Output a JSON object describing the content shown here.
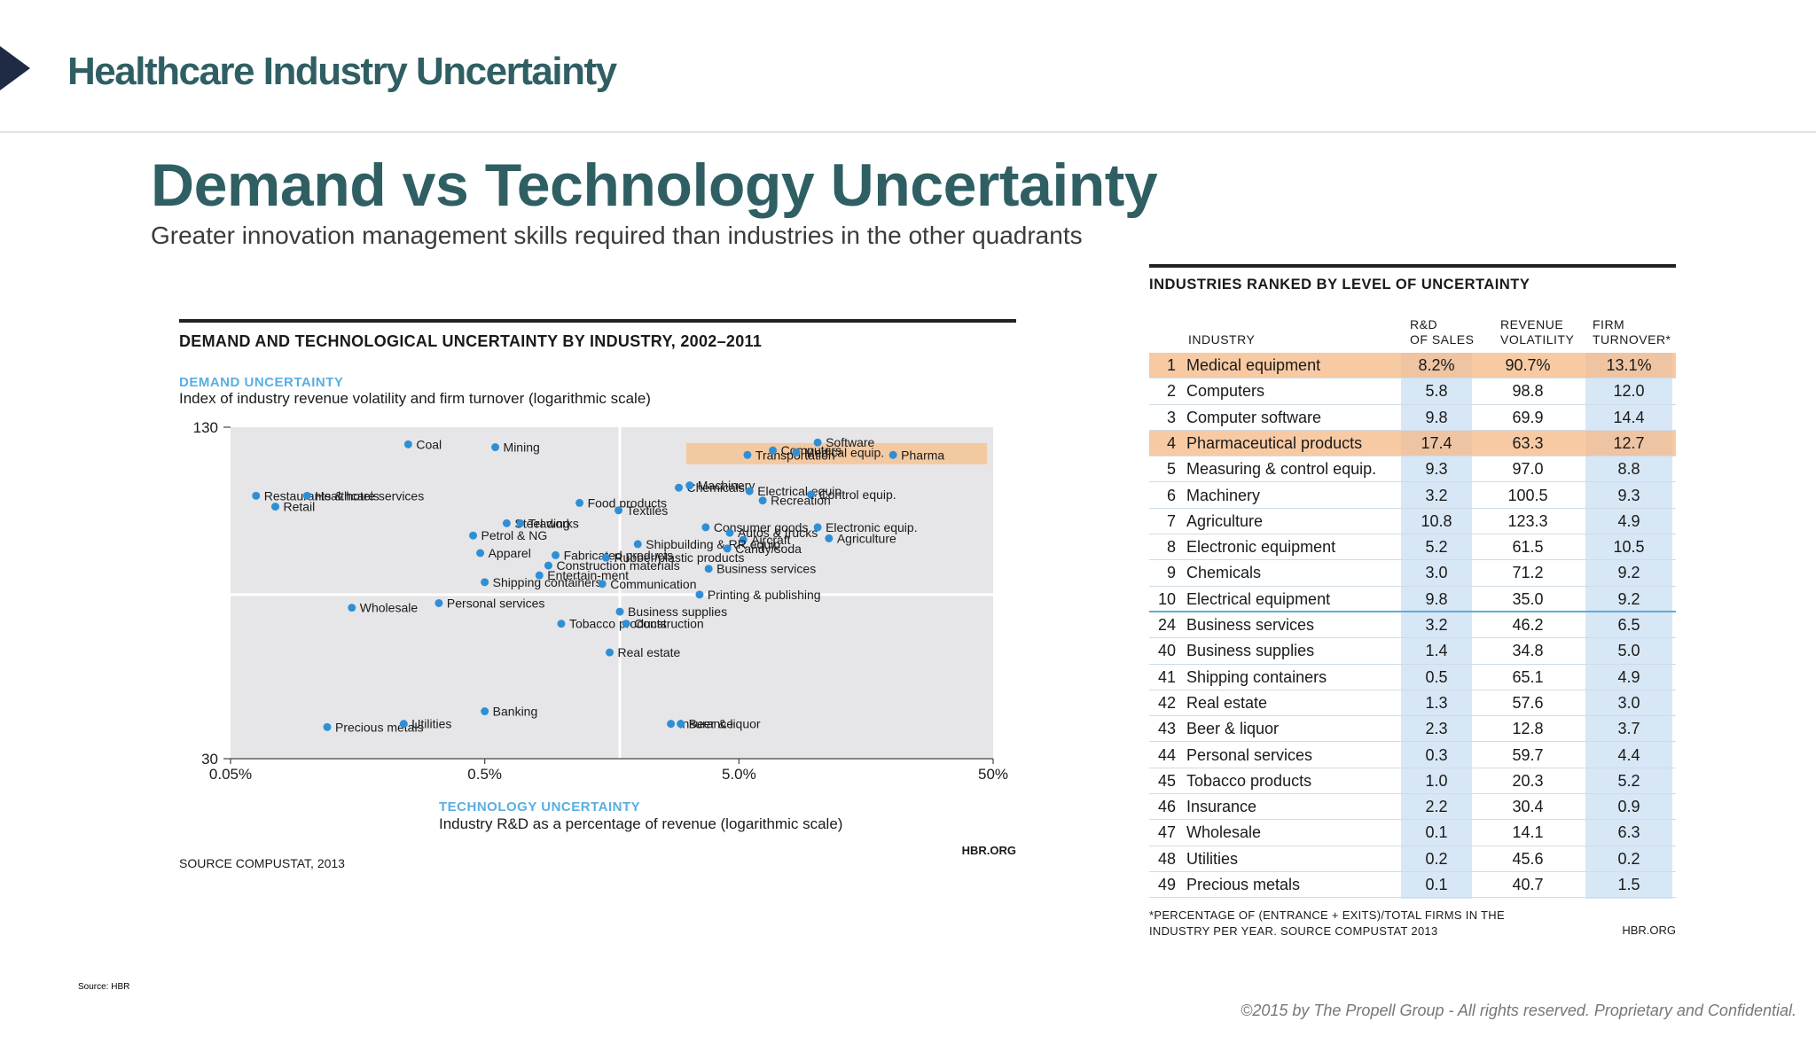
{
  "header": {
    "title": "Healthcare Industry Uncertainty"
  },
  "slide": {
    "title": "Demand vs Technology Uncertainty",
    "subtitle": "Greater innovation management skills required than industries in the other quadrants"
  },
  "scatter_panel": {
    "title": "DEMAND AND TECHNOLOGICAL UNCERTAINTY BY INDUSTRY, 2002–2011",
    "y_title": "DEMAND UNCERTAINTY",
    "y_desc": "Index of industry revenue volatility and firm turnover (logarithmic scale)",
    "x_title": "TECHNOLOGY UNCERTAINTY",
    "x_desc": "Industry R&D as a percentage of revenue (logarithmic scale)",
    "source": "SOURCE COMPUSTAT, 2013",
    "credit": "HBR.ORG"
  },
  "colors": {
    "dot": "#2f8fd6",
    "plot_bg": "#e6e6e8",
    "highlight": "#f3c9a1",
    "accent": "#2f5f63"
  },
  "chart_data": [
    {
      "type": "scatter",
      "title": "DEMAND AND TECHNOLOGICAL UNCERTAINTY BY INDUSTRY, 2002–2011",
      "xlabel": "Industry R&D as a percentage of revenue (logarithmic scale)",
      "ylabel": "Index of industry revenue volatility and firm turnover (logarithmic scale)",
      "x_scale": "log",
      "y_scale": "log",
      "xlim": [
        0.05,
        50
      ],
      "ylim": [
        30,
        130
      ],
      "x_ticks": [
        0.05,
        0.5,
        5,
        50
      ],
      "x_tick_labels": [
        "0.05%",
        "0.5%",
        "5.0%",
        "50%"
      ],
      "y_ticks": [
        30,
        130
      ],
      "y_tick_labels": [
        "30",
        "130"
      ],
      "quadrant_divider": {
        "x": 1.7,
        "y": 62
      },
      "highlight_labels": [
        "Medical equip.",
        "Pharma"
      ],
      "points": [
        {
          "label": "Coal",
          "x": 0.25,
          "y": 120.5
        },
        {
          "label": "Mining",
          "x": 0.55,
          "y": 119
        },
        {
          "label": "Restaurants & hotels",
          "x": 0.063,
          "y": 96
        },
        {
          "label": "Healthcare services",
          "x": 0.1,
          "y": 96
        },
        {
          "label": "Retail",
          "x": 0.075,
          "y": 91.5
        },
        {
          "label": "Steel works",
          "x": 0.61,
          "y": 85
        },
        {
          "label": "Trading",
          "x": 0.69,
          "y": 85
        },
        {
          "label": "Food products",
          "x": 1.18,
          "y": 93
        },
        {
          "label": "Textiles",
          "x": 1.68,
          "y": 90
        },
        {
          "label": "Chemicals",
          "x": 2.9,
          "y": 99.5
        },
        {
          "label": "Transportation",
          "x": 5.4,
          "y": 115
        },
        {
          "label": "Computers",
          "x": 6.8,
          "y": 117.3
        },
        {
          "label": "Software",
          "x": 10.2,
          "y": 121.5
        },
        {
          "label": "Medical equip.",
          "x": 8.4,
          "y": 116.3
        },
        {
          "label": "Pharma",
          "x": 20.2,
          "y": 115
        },
        {
          "label": "Machinery",
          "x": 3.2,
          "y": 100.5
        },
        {
          "label": "Electrical equip.",
          "x": 5.5,
          "y": 98
        },
        {
          "label": "Control equip.",
          "x": 9.6,
          "y": 96.5
        },
        {
          "label": "Recreation",
          "x": 6.2,
          "y": 94
        },
        {
          "label": "Consumer goods",
          "x": 3.7,
          "y": 83.5
        },
        {
          "label": "Autos & trucks",
          "x": 4.6,
          "y": 81.5
        },
        {
          "label": "Electronic equip.",
          "x": 10.2,
          "y": 83.5
        },
        {
          "label": "Aircraft",
          "x": 5.2,
          "y": 79
        },
        {
          "label": "Agriculture",
          "x": 11.3,
          "y": 79.5
        },
        {
          "label": "Shipbuilding & RR equip.",
          "x": 2.0,
          "y": 77.5
        },
        {
          "label": "Candy/soda",
          "x": 4.5,
          "y": 76
        },
        {
          "label": "Petrol & NG",
          "x": 0.45,
          "y": 80.5
        },
        {
          "label": "Apparel",
          "x": 0.48,
          "y": 74.5
        },
        {
          "label": "Fabricated products",
          "x": 0.95,
          "y": 73.8
        },
        {
          "label": "Construction materials",
          "x": 0.89,
          "y": 70.5
        },
        {
          "label": "Rubber/plastic products",
          "x": 1.5,
          "y": 73
        },
        {
          "label": "Business services",
          "x": 3.8,
          "y": 69.5
        },
        {
          "label": "Shipping containers",
          "x": 0.5,
          "y": 65.5
        },
        {
          "label": "Entertain-ment",
          "x": 0.82,
          "y": 67.5
        },
        {
          "label": "Communication",
          "x": 1.45,
          "y": 65
        },
        {
          "label": "Printing & publishing",
          "x": 3.5,
          "y": 62
        },
        {
          "label": "Wholesale",
          "x": 0.15,
          "y": 58.5
        },
        {
          "label": "Personal services",
          "x": 0.33,
          "y": 59.7
        },
        {
          "label": "Business supplies",
          "x": 1.7,
          "y": 57.5
        },
        {
          "label": "Tobacco products",
          "x": 1.0,
          "y": 54.5
        },
        {
          "label": "Construction",
          "x": 1.8,
          "y": 54.5
        },
        {
          "label": "Real estate",
          "x": 1.55,
          "y": 48
        },
        {
          "label": "Precious metals",
          "x": 0.12,
          "y": 34.5
        },
        {
          "label": "Utilities",
          "x": 0.24,
          "y": 35
        },
        {
          "label": "Banking",
          "x": 0.5,
          "y": 37
        },
        {
          "label": "Insurance",
          "x": 2.7,
          "y": 35
        },
        {
          "label": "Beer & liquor",
          "x": 2.95,
          "y": 35
        }
      ]
    },
    {
      "type": "table",
      "title": "INDUSTRIES RANKED BY LEVEL OF UNCERTAINTY",
      "columns": [
        "INDUSTRY",
        "R&D OF SALES",
        "REVENUE VOLATILITY",
        "FIRM TURNOVER*"
      ],
      "rows": [
        {
          "rank": "1",
          "industry": "Medical equipment",
          "rd": "8.2%",
          "rev": "90.7%",
          "firm": "13.1%",
          "highlight": true,
          "separator": false
        },
        {
          "rank": "2",
          "industry": "Computers",
          "rd": "5.8",
          "rev": "98.8",
          "firm": "12.0",
          "highlight": false,
          "separator": false
        },
        {
          "rank": "3",
          "industry": "Computer software",
          "rd": "9.8",
          "rev": "69.9",
          "firm": "14.4",
          "highlight": false,
          "separator": false
        },
        {
          "rank": "4",
          "industry": "Pharmaceutical products",
          "rd": "17.4",
          "rev": "63.3",
          "firm": "12.7",
          "highlight": true,
          "separator": false
        },
        {
          "rank": "5",
          "industry": "Measuring & control equip.",
          "rd": "9.3",
          "rev": "97.0",
          "firm": "8.8",
          "highlight": false,
          "separator": false
        },
        {
          "rank": "6",
          "industry": "Machinery",
          "rd": "3.2",
          "rev": "100.5",
          "firm": "9.3",
          "highlight": false,
          "separator": false
        },
        {
          "rank": "7",
          "industry": "Agriculture",
          "rd": "10.8",
          "rev": "123.3",
          "firm": "4.9",
          "highlight": false,
          "separator": false
        },
        {
          "rank": "8",
          "industry": "Electronic equipment",
          "rd": "5.2",
          "rev": "61.5",
          "firm": "10.5",
          "highlight": false,
          "separator": false
        },
        {
          "rank": "9",
          "industry": "Chemicals",
          "rd": "3.0",
          "rev": "71.2",
          "firm": "9.2",
          "highlight": false,
          "separator": false
        },
        {
          "rank": "10",
          "industry": "Electrical equipment",
          "rd": "9.8",
          "rev": "35.0",
          "firm": "9.2",
          "highlight": false,
          "separator": true
        },
        {
          "rank": "24",
          "industry": "Business services",
          "rd": "3.2",
          "rev": "46.2",
          "firm": "6.5",
          "highlight": false,
          "separator": false
        },
        {
          "rank": "40",
          "industry": "Business supplies",
          "rd": "1.4",
          "rev": "34.8",
          "firm": "5.0",
          "highlight": false,
          "separator": false
        },
        {
          "rank": "41",
          "industry": "Shipping containers",
          "rd": "0.5",
          "rev": "65.1",
          "firm": "4.9",
          "highlight": false,
          "separator": false
        },
        {
          "rank": "42",
          "industry": "Real estate",
          "rd": "1.3",
          "rev": "57.6",
          "firm": "3.0",
          "highlight": false,
          "separator": false
        },
        {
          "rank": "43",
          "industry": "Beer & liquor",
          "rd": "2.3",
          "rev": "12.8",
          "firm": "3.7",
          "highlight": false,
          "separator": false
        },
        {
          "rank": "44",
          "industry": "Personal services",
          "rd": "0.3",
          "rev": "59.7",
          "firm": "4.4",
          "highlight": false,
          "separator": false
        },
        {
          "rank": "45",
          "industry": "Tobacco products",
          "rd": "1.0",
          "rev": "20.3",
          "firm": "5.2",
          "highlight": false,
          "separator": false
        },
        {
          "rank": "46",
          "industry": "Insurance",
          "rd": "2.2",
          "rev": "30.4",
          "firm": "0.9",
          "highlight": false,
          "separator": false
        },
        {
          "rank": "47",
          "industry": "Wholesale",
          "rd": "0.1",
          "rev": "14.1",
          "firm": "6.3",
          "highlight": false,
          "separator": false
        },
        {
          "rank": "48",
          "industry": "Utilities",
          "rd": "0.2",
          "rev": "45.6",
          "firm": "0.2",
          "highlight": false,
          "separator": false
        },
        {
          "rank": "49",
          "industry": "Precious metals",
          "rd": "0.1",
          "rev": "40.7",
          "firm": "1.5",
          "highlight": false,
          "separator": false
        }
      ]
    }
  ],
  "table_panel": {
    "title": "INDUSTRIES RANKED BY LEVEL OF UNCERTAINTY",
    "col_industry": "INDUSTRY",
    "col_rd_1": "R&D",
    "col_rd_2": "OF SALES",
    "col_rev_1": "REVENUE",
    "col_rev_2": "VOLATILITY",
    "col_firm_1": "FIRM",
    "col_firm_2": "TURNOVER*",
    "footnote_1": "*PERCENTAGE OF (ENTRANCE + EXITS)/TOTAL FIRMS IN THE",
    "footnote_2": "INDUSTRY PER YEAR. SOURCE COMPUSTAT 2013",
    "credit": "HBR.ORG"
  },
  "footer": {
    "source": "Source: HBR",
    "copyright": "©2015 by The Propell Group -  All rights reserved. Proprietary and Confidential."
  }
}
